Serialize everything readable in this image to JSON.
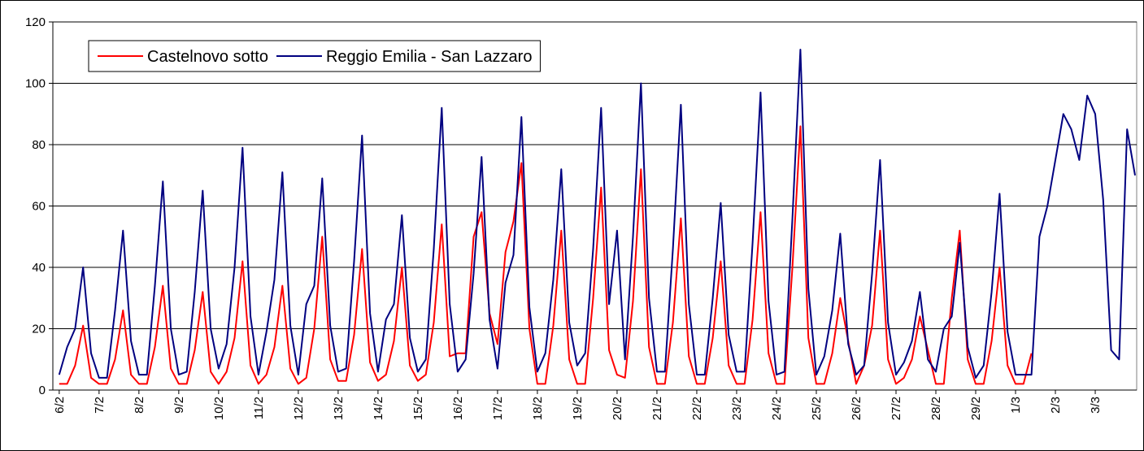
{
  "chart_data": {
    "type": "line",
    "x": [
      0,
      0.2,
      0.4,
      0.6,
      0.8,
      1,
      1.2,
      1.4,
      1.6,
      1.8,
      2,
      2.2,
      2.4,
      2.6,
      2.8,
      3,
      3.2,
      3.4,
      3.6,
      3.8,
      4,
      4.2,
      4.4,
      4.6,
      4.8,
      5,
      5.2,
      5.4,
      5.6,
      5.8,
      6,
      6.2,
      6.4,
      6.6,
      6.8,
      7,
      7.2,
      7.4,
      7.6,
      7.8,
      8,
      8.2,
      8.4,
      8.6,
      8.8,
      9,
      9.2,
      9.4,
      9.6,
      9.8,
      10,
      10.2,
      10.4,
      10.6,
      10.8,
      11,
      11.2,
      11.4,
      11.6,
      11.8,
      12,
      12.2,
      12.4,
      12.6,
      12.8,
      13,
      13.2,
      13.4,
      13.6,
      13.8,
      14,
      14.2,
      14.4,
      14.6,
      14.8,
      15,
      15.2,
      15.4,
      15.6,
      15.8,
      16,
      16.2,
      16.4,
      16.6,
      16.8,
      17,
      17.2,
      17.4,
      17.6,
      17.8,
      18,
      18.2,
      18.4,
      18.6,
      18.8,
      19,
      19.2,
      19.4,
      19.6,
      19.8,
      20,
      20.2,
      20.4,
      20.6,
      20.8,
      21,
      21.2,
      21.4,
      21.6,
      21.8,
      22,
      22.2,
      22.4,
      22.6,
      22.8,
      23,
      23.2,
      23.4,
      23.6,
      23.8,
      24,
      24.2,
      24.4,
      24.6,
      24.8,
      25,
      25.2,
      25.4,
      25.6,
      25.8,
      26,
      26.2,
      26.4,
      26.6,
      26.8,
      27
    ],
    "series": [
      {
        "name": "Castelnovo sotto",
        "color": "#ff0000",
        "values": [
          2,
          2,
          8,
          21,
          4,
          2,
          2,
          10,
          26,
          5,
          2,
          2,
          14,
          34,
          7,
          2,
          2,
          13,
          32,
          6,
          2,
          6,
          17,
          42,
          8,
          2,
          5,
          14,
          34,
          7,
          2,
          4,
          20,
          50,
          10,
          3,
          3,
          18,
          46,
          9,
          3,
          5,
          16,
          40,
          8,
          3,
          5,
          22,
          54,
          11,
          12,
          12,
          50,
          58,
          25,
          15,
          45,
          55,
          74,
          20,
          2,
          2,
          21,
          52,
          10,
          2,
          2,
          30,
          66,
          13,
          5,
          4,
          29,
          72,
          14,
          2,
          2,
          22,
          56,
          11,
          2,
          2,
          17,
          42,
          8,
          2,
          2,
          23,
          58,
          12,
          2,
          2,
          40,
          86,
          17,
          2,
          2,
          12,
          30,
          16,
          2,
          8,
          21,
          52,
          10,
          2,
          4,
          10,
          24,
          13,
          2,
          2,
          30,
          52,
          10,
          2,
          2,
          16,
          40,
          8,
          2,
          2,
          12,
          null,
          null,
          null,
          null,
          null,
          null,
          null,
          null,
          null,
          null,
          null,
          null,
          null
        ]
      },
      {
        "name": "Reggio Emilia - San Lazzaro",
        "color": "#000080",
        "values": [
          5,
          14,
          20,
          40,
          12,
          4,
          4,
          26,
          52,
          16,
          5,
          5,
          34,
          68,
          20,
          5,
          6,
          32,
          65,
          20,
          7,
          15,
          40,
          79,
          24,
          5,
          19,
          36,
          71,
          21,
          5,
          28,
          34,
          69,
          21,
          6,
          7,
          42,
          83,
          25,
          6,
          23,
          28,
          57,
          17,
          6,
          10,
          46,
          92,
          28,
          6,
          10,
          38,
          76,
          23,
          7,
          35,
          44,
          89,
          27,
          6,
          12,
          36,
          72,
          22,
          8,
          12,
          46,
          92,
          28,
          52,
          10,
          50,
          100,
          30,
          6,
          6,
          46,
          93,
          28,
          5,
          5,
          30,
          61,
          18,
          6,
          6,
          48,
          97,
          29,
          5,
          6,
          56,
          111,
          33,
          5,
          11,
          26,
          51,
          15,
          5,
          8,
          38,
          75,
          22,
          5,
          9,
          16,
          32,
          10,
          6,
          20,
          24,
          48,
          14,
          4,
          8,
          32,
          64,
          19,
          5,
          5,
          5,
          50,
          60,
          75,
          90,
          85,
          75,
          96,
          90,
          62,
          13,
          10,
          85,
          70
        ]
      }
    ],
    "xlim": [
      -0.16,
      27.04
    ],
    "xticks": [
      {
        "value": 0,
        "label": "6/2"
      },
      {
        "value": 1,
        "label": "7/2"
      },
      {
        "value": 2,
        "label": "8/2"
      },
      {
        "value": 3,
        "label": "9/2"
      },
      {
        "value": 4,
        "label": "10/2"
      },
      {
        "value": 5,
        "label": "11/2"
      },
      {
        "value": 6,
        "label": "12/2"
      },
      {
        "value": 7,
        "label": "13/2"
      },
      {
        "value": 8,
        "label": "14/2"
      },
      {
        "value": 9,
        "label": "15/2"
      },
      {
        "value": 10,
        "label": "16/2"
      },
      {
        "value": 11,
        "label": "17/2"
      },
      {
        "value": 12,
        "label": "18/2"
      },
      {
        "value": 13,
        "label": "19/2"
      },
      {
        "value": 14,
        "label": "20/2"
      },
      {
        "value": 15,
        "label": "21/2"
      },
      {
        "value": 16,
        "label": "22/2"
      },
      {
        "value": 17,
        "label": "23/2"
      },
      {
        "value": 18,
        "label": "24/2"
      },
      {
        "value": 19,
        "label": "25/2"
      },
      {
        "value": 20,
        "label": "26/2"
      },
      {
        "value": 21,
        "label": "27/2"
      },
      {
        "value": 22,
        "label": "28/2"
      },
      {
        "value": 23,
        "label": "29/2"
      },
      {
        "value": 24,
        "label": "1/3"
      },
      {
        "value": 25,
        "label": "2/3"
      },
      {
        "value": 26,
        "label": "3/3"
      }
    ],
    "ylim": [
      0,
      120
    ],
    "yticks": [
      0,
      20,
      40,
      60,
      80,
      100,
      120
    ],
    "grid": true,
    "legend": "top-left"
  }
}
